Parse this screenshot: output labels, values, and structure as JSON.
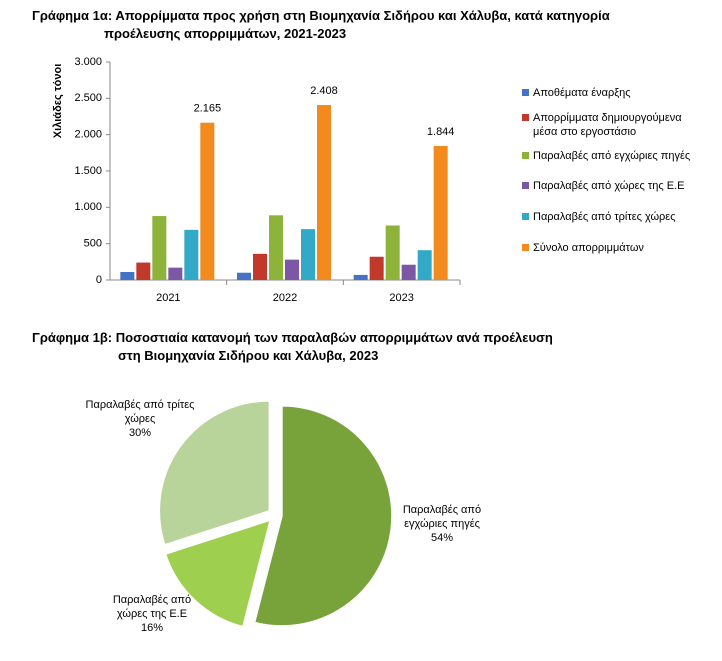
{
  "chart_data": [
    {
      "type": "bar",
      "title_lines": [
        "Γράφημα 1α: Απορρίμματα προς χρήση στη Βιομηχανία Σιδήρου και Χάλυβα, κατά κατηγορία",
        "προέλευσης απορριμμάτων, 2021-2023"
      ],
      "y_label": "Χιλιάδες τόνοι",
      "categories": [
        "2021",
        "2022",
        "2023"
      ],
      "series": [
        {
          "name": "Αποθέματα έναρξης",
          "color": "#4472c4",
          "values": [
            110,
            100,
            70
          ]
        },
        {
          "name": "Απορρίμματα δημιουργούμενα μέσα στο εργοστάσιο",
          "color": "#c0392b",
          "values": [
            240,
            360,
            320
          ]
        },
        {
          "name": "Παραλαβές από εγχώριες πηγές",
          "color": "#8db33a",
          "values": [
            880,
            890,
            750
          ]
        },
        {
          "name": "Παραλαβές από χώρες της Ε.Ε",
          "color": "#7b57a6",
          "values": [
            170,
            280,
            210
          ]
        },
        {
          "name": "Παραλαβές από τρίτες χώρες",
          "color": "#31a9c7",
          "values": [
            690,
            700,
            410
          ]
        },
        {
          "name": "Σύνολο απορριμμάτων",
          "color": "#f28a1d",
          "values": [
            2165,
            2408,
            1844
          ],
          "value_labels": [
            "2.165",
            "2.408",
            "1.844"
          ]
        }
      ],
      "ylim": [
        0,
        3000
      ],
      "yticks": [
        0,
        500,
        {
          "value": 1000,
          "label": "1.000"
        },
        {
          "value": 1500,
          "label": "1.500"
        },
        {
          "value": 2000,
          "label": "2.000"
        },
        {
          "value": 2500,
          "label": "2.500"
        },
        {
          "value": 3000,
          "label": "3.000"
        }
      ],
      "legend": "right"
    },
    {
      "type": "pie",
      "title_lines": [
        "Γράφημα 1β: Ποσοστιαία κατανομή των παραλαβών απορριμμάτων ανά  προέλευση",
        "στη Βιομηχανία Σιδήρου και Χάλυβα, 2023"
      ],
      "categories": [
        "Παραλαβές από εγχώριες πηγές",
        "Παραλαβές από χώρες της Ε.Ε",
        "Παραλαβές από τρίτες χώρες"
      ],
      "values": [
        54,
        16,
        30
      ],
      "value_labels": [
        "54%",
        "16%",
        "30%"
      ],
      "colors": [
        "#77a33a",
        "#9fcf4f",
        "#b8d49a"
      ]
    }
  ]
}
